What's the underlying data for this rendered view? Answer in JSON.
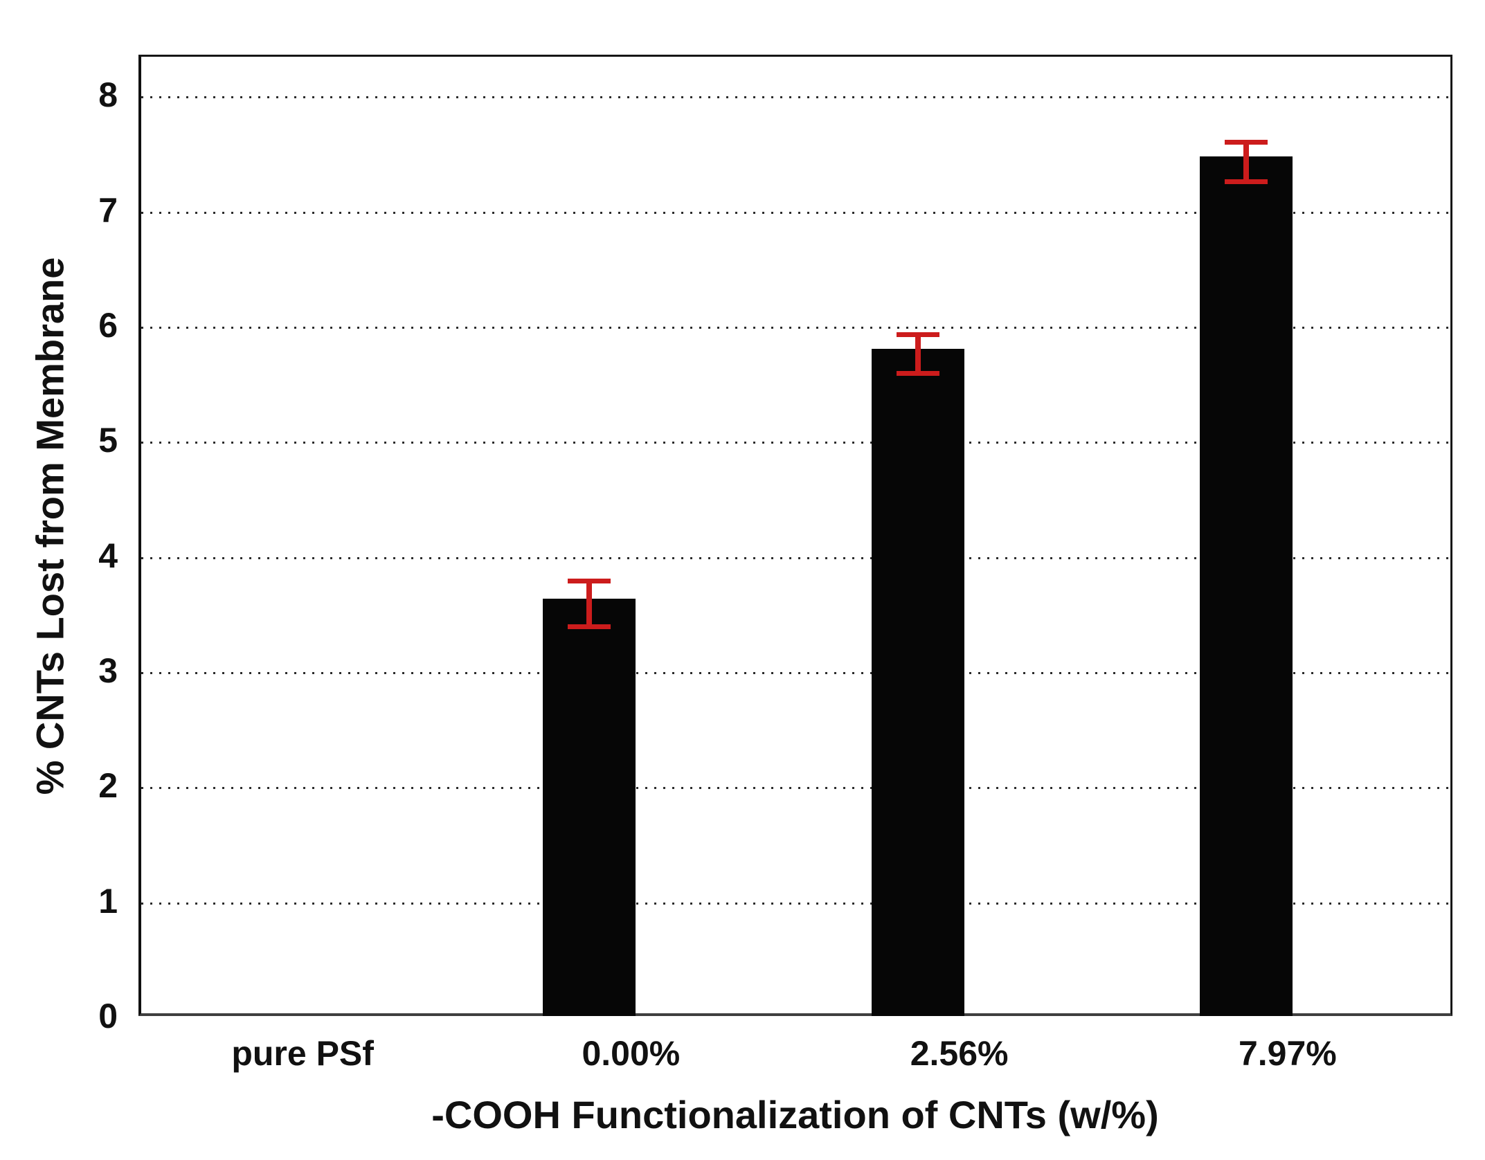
{
  "chart_data": {
    "type": "bar",
    "title": "",
    "xlabel": "-COOH Functionalization of CNTs (w/%)",
    "ylabel": "% CNTs Lost from Membrane",
    "categories": [
      "pure PSf",
      "0.00%",
      "2.56%",
      "7.97%"
    ],
    "values": [
      0,
      3.6,
      5.77,
      7.44
    ],
    "errors": [
      0,
      0.2,
      0.17,
      0.17
    ],
    "y_ticks": [
      0,
      1,
      2,
      3,
      4,
      5,
      6,
      7,
      8
    ],
    "ylim": [
      0,
      8.35
    ],
    "grid": "horizontal-dotted",
    "legend_position": "none",
    "colors": {
      "bar": "#060606",
      "error_bar": "#cc1c1c",
      "gridline": "#2b2b2b",
      "axis": "#161616",
      "background": "#ffffff",
      "text": "#111111"
    }
  }
}
